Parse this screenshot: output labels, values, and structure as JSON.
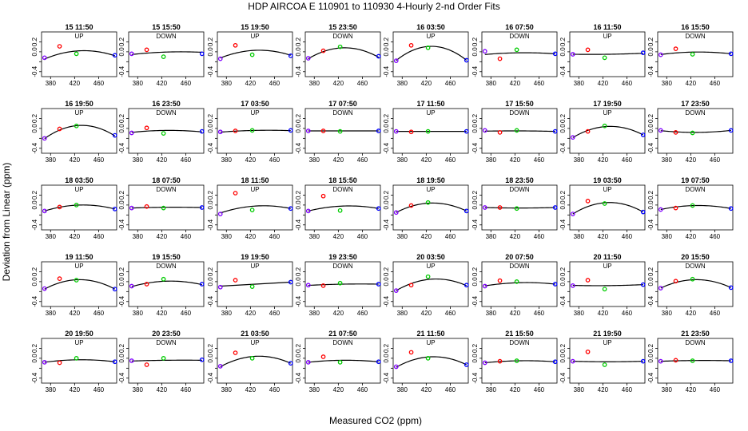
{
  "title": "HDP   AIRCOA E   110901 to 110930   4-Hourly 2-nd Order Fits",
  "xlabel": "Measured CO2 (ppm)",
  "ylabel": "Deviation from Linear (ppm)",
  "chart_data": {
    "type": "scatter",
    "layout": "small-multiples 5 rows x 8 columns",
    "xlim": [
      365,
      490
    ],
    "ylim": [
      -0.5,
      0.4
    ],
    "xticks": [
      380,
      420,
      460
    ],
    "yticks": [
      -0.4,
      -0.2,
      0.0,
      0.2
    ],
    "ytick_labels": [
      "-0.4",
      "",
      "0.0",
      "0.2"
    ],
    "standards_x": [
      370,
      395,
      423,
      487
    ],
    "standard_colors": [
      "#8000ff",
      "#ff0000",
      "#00cc00",
      "#0000ff"
    ],
    "fit_color": "#000000",
    "panels": [
      {
        "title": "15 11:50",
        "direction": "UP",
        "dev": [
          -0.12,
          0.11,
          -0.04,
          -0.07
        ],
        "fit": [
          -0.145,
          0.02,
          -0.08
        ]
      },
      {
        "title": "15 15:50",
        "direction": "DOWN",
        "dev": [
          -0.04,
          0.04,
          -0.1,
          -0.04
        ],
        "fit": [
          -0.055,
          -0.005,
          -0.01
        ]
      },
      {
        "title": "15 19:50",
        "direction": "UP",
        "dev": [
          -0.14,
          0.13,
          -0.06,
          -0.08
        ],
        "fit": [
          -0.125,
          0.03,
          -0.07
        ]
      },
      {
        "title": "15 23:50",
        "direction": "DOWN",
        "dev": [
          -0.13,
          0.02,
          0.1,
          -0.09
        ],
        "fit": [
          -0.14,
          0.08,
          -0.11
        ]
      },
      {
        "title": "16 03:50",
        "direction": "UP",
        "dev": [
          -0.18,
          0.13,
          0.08,
          -0.17
        ],
        "fit": [
          -0.175,
          0.11,
          -0.17
        ]
      },
      {
        "title": "16 07:50",
        "direction": "DOWN",
        "dev": [
          0.01,
          -0.14,
          0.04,
          -0.04
        ],
        "fit": [
          -0.055,
          -0.02,
          -0.04
        ]
      },
      {
        "title": "16 11:50",
        "direction": "UP",
        "dev": [
          -0.05,
          0.04,
          -0.12,
          -0.02
        ],
        "fit": [
          -0.05,
          -0.05,
          -0.03
        ]
      },
      {
        "title": "16 15:50",
        "direction": "DOWN",
        "dev": [
          -0.06,
          0.06,
          -0.05,
          -0.04
        ],
        "fit": [
          -0.055,
          -0.005,
          -0.04
        ]
      },
      {
        "title": "16 19:50",
        "direction": "UP",
        "dev": [
          -0.2,
          -0.01,
          0.05,
          -0.14
        ],
        "fit": [
          -0.205,
          0.06,
          -0.15
        ]
      },
      {
        "title": "16 23:50",
        "direction": "DOWN",
        "dev": [
          -0.09,
          0.01,
          -0.1,
          -0.06
        ],
        "fit": [
          -0.08,
          -0.04,
          -0.07
        ]
      },
      {
        "title": "17 03:50",
        "direction": "UP",
        "dev": [
          -0.07,
          -0.05,
          -0.04,
          -0.04
        ],
        "fit": [
          -0.075,
          -0.04,
          -0.045
        ]
      },
      {
        "title": "17 07:50",
        "direction": "DOWN",
        "dev": [
          -0.05,
          -0.05,
          -0.06,
          -0.05
        ],
        "fit": [
          -0.05,
          -0.05,
          -0.05
        ]
      },
      {
        "title": "17 11:50",
        "direction": "UP",
        "dev": [
          -0.06,
          -0.07,
          -0.06,
          -0.06
        ],
        "fit": [
          -0.06,
          -0.06,
          -0.06
        ]
      },
      {
        "title": "17 15:50",
        "direction": "DOWN",
        "dev": [
          -0.04,
          -0.08,
          -0.04,
          -0.06
        ],
        "fit": [
          -0.055,
          -0.05,
          -0.06
        ]
      },
      {
        "title": "17 19:50",
        "direction": "UP",
        "dev": [
          -0.18,
          -0.06,
          0.05,
          -0.13
        ],
        "fit": [
          -0.185,
          0.04,
          -0.13
        ]
      },
      {
        "title": "17 23:50",
        "direction": "DOWN",
        "dev": [
          -0.04,
          -0.08,
          -0.09,
          -0.04
        ],
        "fit": [
          -0.045,
          -0.08,
          -0.04
        ]
      },
      {
        "title": "18 03:50",
        "direction": "UP",
        "dev": [
          -0.12,
          -0.04,
          0.0,
          -0.08
        ],
        "fit": [
          -0.12,
          0.0,
          -0.08
        ]
      },
      {
        "title": "18 07:50",
        "direction": "DOWN",
        "dev": [
          -0.06,
          -0.03,
          -0.06,
          -0.05
        ],
        "fit": [
          -0.06,
          -0.045,
          -0.05
        ]
      },
      {
        "title": "18 11:50",
        "direction": "UP",
        "dev": [
          -0.18,
          0.24,
          -0.1,
          -0.07
        ],
        "fit": [
          -0.16,
          -0.02,
          -0.07
        ]
      },
      {
        "title": "18 15:50",
        "direction": "DOWN",
        "dev": [
          -0.12,
          0.18,
          -0.11,
          -0.07
        ],
        "fit": [
          -0.12,
          -0.02,
          -0.07
        ]
      },
      {
        "title": "18 19:50",
        "direction": "UP",
        "dev": [
          -0.15,
          -0.01,
          0.05,
          -0.12
        ],
        "fit": [
          -0.15,
          0.04,
          -0.12
        ]
      },
      {
        "title": "18 23:50",
        "direction": "DOWN",
        "dev": [
          -0.05,
          -0.05,
          -0.07,
          -0.05
        ],
        "fit": [
          -0.05,
          -0.06,
          -0.05
        ]
      },
      {
        "title": "19 03:50",
        "direction": "UP",
        "dev": [
          -0.18,
          0.08,
          0.03,
          -0.14
        ],
        "fit": [
          -0.18,
          0.05,
          -0.14
        ]
      },
      {
        "title": "19 07:50",
        "direction": "DOWN",
        "dev": [
          -0.09,
          -0.06,
          -0.01,
          -0.07
        ],
        "fit": [
          -0.09,
          -0.01,
          -0.07
        ]
      },
      {
        "title": "19 11:50",
        "direction": "UP",
        "dev": [
          -0.14,
          0.06,
          0.03,
          -0.15
        ],
        "fit": [
          -0.15,
          0.04,
          -0.15
        ]
      },
      {
        "title": "19 15:50",
        "direction": "DOWN",
        "dev": [
          -0.09,
          -0.05,
          0.05,
          -0.05
        ],
        "fit": [
          -0.1,
          0.01,
          -0.06
        ]
      },
      {
        "title": "19 19:50",
        "direction": "UP",
        "dev": [
          -0.11,
          0.03,
          -0.1,
          -0.01
        ],
        "fit": [
          -0.09,
          -0.05,
          -0.01
        ]
      },
      {
        "title": "19 23:50",
        "direction": "DOWN",
        "dev": [
          -0.07,
          -0.08,
          -0.03,
          -0.05
        ],
        "fit": [
          -0.075,
          -0.05,
          -0.05
        ]
      },
      {
        "title": "20 03:50",
        "direction": "UP",
        "dev": [
          -0.18,
          -0.07,
          0.1,
          -0.07
        ],
        "fit": [
          -0.18,
          0.05,
          -0.08
        ]
      },
      {
        "title": "20 07:50",
        "direction": "DOWN",
        "dev": [
          -0.09,
          0.02,
          0.0,
          -0.05
        ],
        "fit": [
          -0.085,
          -0.02,
          -0.05
        ]
      },
      {
        "title": "20 11:50",
        "direction": "UP",
        "dev": [
          -0.08,
          0.03,
          -0.15,
          -0.06
        ],
        "fit": [
          -0.075,
          -0.08,
          -0.06
        ]
      },
      {
        "title": "20 15:50",
        "direction": "DOWN",
        "dev": [
          -0.13,
          0.01,
          0.05,
          -0.12
        ],
        "fit": [
          -0.13,
          0.04,
          -0.12
        ]
      },
      {
        "title": "20 19:50",
        "direction": "UP",
        "dev": [
          -0.08,
          -0.09,
          0.0,
          -0.07
        ],
        "fit": [
          -0.08,
          -0.03,
          -0.07
        ]
      },
      {
        "title": "20 23:50",
        "direction": "DOWN",
        "dev": [
          -0.05,
          -0.13,
          0.0,
          -0.03
        ],
        "fit": [
          -0.055,
          -0.04,
          -0.04
        ]
      },
      {
        "title": "21 03:50",
        "direction": "UP",
        "dev": [
          -0.16,
          0.11,
          0.0,
          -0.1
        ],
        "fit": [
          -0.17,
          0.04,
          -0.1
        ]
      },
      {
        "title": "21 07:50",
        "direction": "DOWN",
        "dev": [
          -0.08,
          0.03,
          -0.08,
          -0.07
        ],
        "fit": [
          -0.08,
          -0.04,
          -0.07
        ]
      },
      {
        "title": "21 11:50",
        "direction": "UP",
        "dev": [
          -0.17,
          0.12,
          0.0,
          -0.13
        ],
        "fit": [
          -0.18,
          0.03,
          -0.13
        ]
      },
      {
        "title": "21 15:50",
        "direction": "DOWN",
        "dev": [
          -0.09,
          -0.06,
          -0.05,
          -0.07
        ],
        "fit": [
          -0.09,
          -0.05,
          -0.07
        ]
      },
      {
        "title": "21 19:50",
        "direction": "UP",
        "dev": [
          -0.06,
          0.13,
          -0.13,
          -0.06
        ],
        "fit": [
          -0.06,
          -0.07,
          -0.06
        ]
      },
      {
        "title": "21 23:50",
        "direction": "DOWN",
        "dev": [
          -0.06,
          -0.04,
          -0.05,
          -0.05
        ],
        "fit": [
          -0.06,
          -0.045,
          -0.05
        ]
      }
    ]
  }
}
